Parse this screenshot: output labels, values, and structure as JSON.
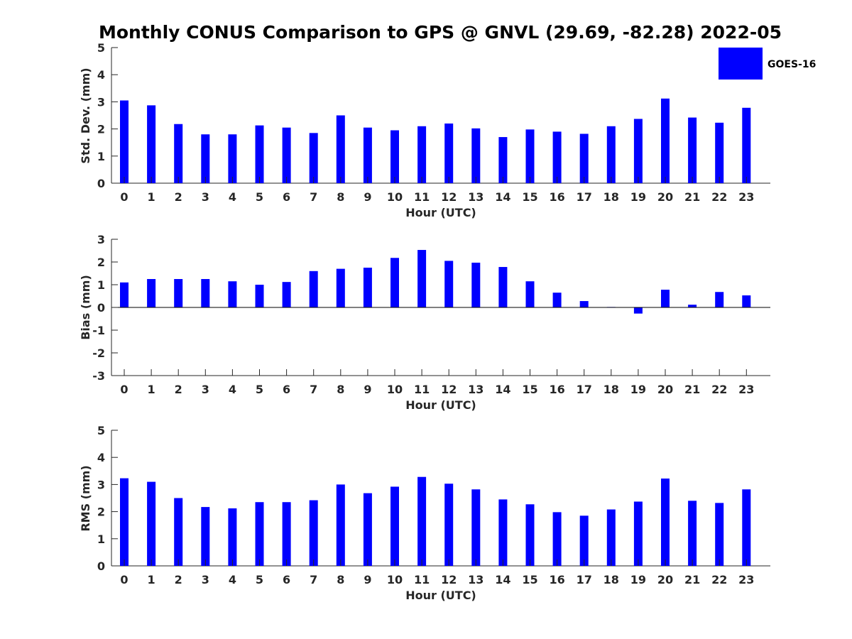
{
  "title": "Monthly CONUS Comparison to GPS @ GNVL (29.69, -82.28) 2022-05",
  "legend": {
    "label": "GOES-16",
    "color": "#0000FF"
  },
  "chart_data": [
    {
      "type": "bar",
      "xlabel": "Hour (UTC)",
      "ylabel": "Std. Dev. (mm)",
      "ylim": [
        0,
        5
      ],
      "yticks": [
        0,
        1,
        2,
        3,
        4,
        5
      ],
      "categories": [
        "0",
        "1",
        "2",
        "3",
        "4",
        "5",
        "6",
        "7",
        "8",
        "9",
        "10",
        "11",
        "12",
        "13",
        "14",
        "15",
        "16",
        "17",
        "18",
        "19",
        "20",
        "21",
        "22",
        "23"
      ],
      "series": [
        {
          "name": "GOES-16",
          "color": "#0000FF",
          "values": [
            3.05,
            2.87,
            2.18,
            1.8,
            1.8,
            2.13,
            2.05,
            1.85,
            2.5,
            2.05,
            1.95,
            2.1,
            2.2,
            2.02,
            1.7,
            1.98,
            1.9,
            1.82,
            2.1,
            2.37,
            3.12,
            2.42,
            2.23,
            2.78
          ]
        }
      ],
      "grid": false,
      "legend": "top-right"
    },
    {
      "type": "bar",
      "xlabel": "Hour (UTC)",
      "ylabel": "Bias (mm)",
      "ylim": [
        -3,
        3
      ],
      "yticks": [
        -3,
        -2,
        -1,
        0,
        1,
        2,
        3
      ],
      "categories": [
        "0",
        "1",
        "2",
        "3",
        "4",
        "5",
        "6",
        "7",
        "8",
        "9",
        "10",
        "11",
        "12",
        "13",
        "14",
        "15",
        "16",
        "17",
        "18",
        "19",
        "20",
        "21",
        "22",
        "23"
      ],
      "series": [
        {
          "name": "GOES-16",
          "color": "#0000FF",
          "values": [
            1.1,
            1.25,
            1.25,
            1.25,
            1.15,
            1.0,
            1.12,
            1.6,
            1.7,
            1.75,
            2.18,
            2.53,
            2.05,
            1.97,
            1.78,
            1.15,
            0.65,
            0.28,
            0.02,
            -0.27,
            0.78,
            0.12,
            0.68,
            0.53
          ]
        }
      ],
      "grid": false
    },
    {
      "type": "bar",
      "xlabel": "Hour (UTC)",
      "ylabel": "RMS (mm)",
      "ylim": [
        0,
        5
      ],
      "yticks": [
        0,
        1,
        2,
        3,
        4,
        5
      ],
      "categories": [
        "0",
        "1",
        "2",
        "3",
        "4",
        "5",
        "6",
        "7",
        "8",
        "9",
        "10",
        "11",
        "12",
        "13",
        "14",
        "15",
        "16",
        "17",
        "18",
        "19",
        "20",
        "21",
        "22",
        "23"
      ],
      "series": [
        {
          "name": "GOES-16",
          "color": "#0000FF",
          "values": [
            3.23,
            3.1,
            2.5,
            2.17,
            2.12,
            2.35,
            2.35,
            2.42,
            3.0,
            2.68,
            2.92,
            3.28,
            3.03,
            2.82,
            2.45,
            2.27,
            1.98,
            1.85,
            2.08,
            2.37,
            3.22,
            2.4,
            2.32,
            2.82
          ]
        }
      ],
      "grid": false
    }
  ]
}
